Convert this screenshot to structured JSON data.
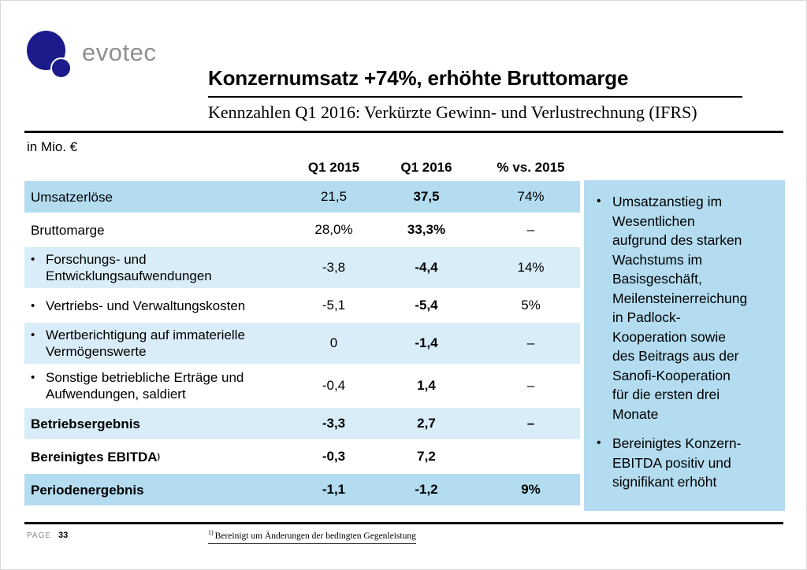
{
  "logo": {
    "brand": "evotec"
  },
  "header": {
    "title": "Konzernumsatz +74%, erhöhte Bruttomarge",
    "subtitle": "Kennzahlen Q1 2016: Verkürzte Gewinn- und Verlustrechnung (IFRS)"
  },
  "table": {
    "unit_label": "in Mio. €",
    "columns": [
      "Q1 2015",
      "Q1 2016",
      "% vs. 2015"
    ],
    "rows": [
      {
        "label": "Umsatzerlöse",
        "bullet": false,
        "bold": false,
        "tone": "medium",
        "q1_2015": "21,5",
        "q1_2016": "37,5",
        "pct": "74%"
      },
      {
        "label": "Bruttomarge",
        "bullet": false,
        "bold": false,
        "tone": "white",
        "q1_2015": "28,0%",
        "q1_2016": "33,3%",
        "pct": "–"
      },
      {
        "label": "Forschungs- und\nEntwicklungsaufwendungen",
        "bullet": true,
        "bold": false,
        "tone": "light",
        "q1_2015": "-3,8",
        "q1_2016": "-4,4",
        "pct": "14%"
      },
      {
        "label": "Vertriebs- und Verwaltungskosten",
        "bullet": true,
        "bold": false,
        "tone": "white",
        "q1_2015": "-5,1",
        "q1_2016": "-5,4",
        "pct": "5%"
      },
      {
        "label": "Wertberichtigung auf immaterielle\nVermögenswerte",
        "bullet": true,
        "bold": false,
        "tone": "light",
        "q1_2015": "0",
        "q1_2016": "-1,4",
        "pct": "–"
      },
      {
        "label": "Sonstige betriebliche Erträge und\nAufwendungen, saldiert",
        "bullet": true,
        "bold": false,
        "tone": "white",
        "q1_2015": "-0,4",
        "q1_2016": "1,4",
        "pct": "–"
      },
      {
        "label": "Betriebsergebnis",
        "bullet": false,
        "bold": true,
        "tone": "light",
        "q1_2015": "-3,3",
        "q1_2016": "2,7",
        "pct": "–"
      },
      {
        "label": "Bereinigtes EBITDA",
        "label_sup": ")",
        "bullet": false,
        "bold": true,
        "tone": "white",
        "q1_2015": "-0,3",
        "q1_2016": "7,2",
        "pct": ""
      },
      {
        "label": "Periodenergebnis",
        "bullet": false,
        "bold": true,
        "tone": "medium",
        "q1_2015": "-1,1",
        "q1_2016": "-1,2",
        "pct": "9%"
      }
    ]
  },
  "sidebar": {
    "bullets": [
      "Umsatzanstieg im\nWesentlichen\naufgrund des starken\nWachstums im\nBasisgeschäft,\nMeilensteinerreichung\nin Padlock-\nKooperation sowie\ndes Beitrags aus der\nSanofi-Kooperation\nfür die ersten drei\nMonate",
      "Bereinigtes Konzern-\nEBITDA positiv und\nsignifikant erhöht"
    ]
  },
  "footer": {
    "page_label": "PAGE",
    "page_number": "33",
    "footnote_marker": "1)",
    "footnote_text": "Bereinigt um Änderungen der bedingten Gegenleistung"
  },
  "colors": {
    "brand_navy": "#1b1b8c",
    "row_medium_blue": "#b3dcf0",
    "row_light_blue": "#d9edf8",
    "logo_gray": "#8f8f8f"
  }
}
